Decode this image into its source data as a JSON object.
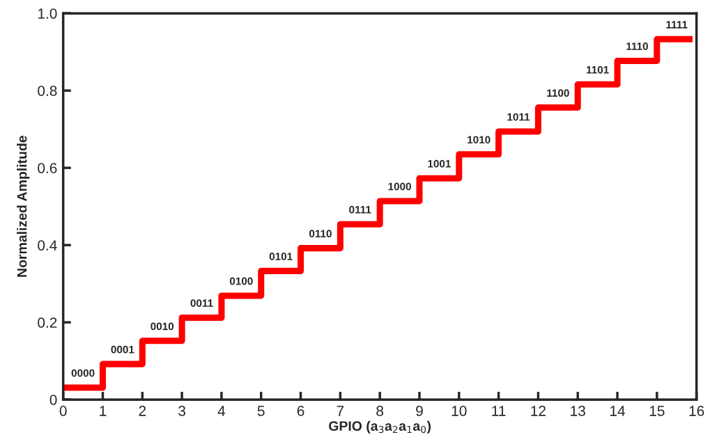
{
  "chart_data": {
    "type": "step",
    "xlabel": "GPIO (a$_{3}$a$_{2}$a$_{1}$a$_{0}$)",
    "ylabel": "Normalized Amplitude",
    "series": [
      {
        "color": "#ff0000",
        "x": [
          0,
          1,
          2,
          3,
          4,
          5,
          6,
          7,
          8,
          9,
          10,
          11,
          12,
          13,
          14,
          15,
          15.9
        ],
        "values": [
          0.031,
          0.092,
          0.152,
          0.212,
          0.269,
          0.333,
          0.392,
          0.454,
          0.514,
          0.573,
          0.635,
          0.694,
          0.756,
          0.816,
          0.877,
          0.933,
          0.933
        ]
      }
    ],
    "annotations": [
      {
        "text": "0000",
        "x": 0.5,
        "y": 0.031
      },
      {
        "text": "0001",
        "x": 1.5,
        "y": 0.092
      },
      {
        "text": "0010",
        "x": 2.5,
        "y": 0.152
      },
      {
        "text": "0011",
        "x": 3.5,
        "y": 0.212
      },
      {
        "text": "0100",
        "x": 4.5,
        "y": 0.269
      },
      {
        "text": "0101",
        "x": 5.5,
        "y": 0.333
      },
      {
        "text": "0110",
        "x": 6.5,
        "y": 0.392
      },
      {
        "text": "0111",
        "x": 7.5,
        "y": 0.454
      },
      {
        "text": "1000",
        "x": 8.5,
        "y": 0.514
      },
      {
        "text": "1001",
        "x": 9.5,
        "y": 0.573
      },
      {
        "text": "1010",
        "x": 10.5,
        "y": 0.635
      },
      {
        "text": "1011",
        "x": 11.5,
        "y": 0.694
      },
      {
        "text": "1100",
        "x": 12.5,
        "y": 0.756
      },
      {
        "text": "1101",
        "x": 13.5,
        "y": 0.816
      },
      {
        "text": "1110",
        "x": 14.5,
        "y": 0.877
      },
      {
        "text": "1111",
        "x": 15.5,
        "y": 0.933
      }
    ],
    "xlim": [
      0,
      16
    ],
    "xticks": [
      0,
      1,
      2,
      3,
      4,
      5,
      6,
      7,
      8,
      9,
      10,
      11,
      12,
      13,
      14,
      15,
      16
    ],
    "ylim": [
      0,
      1.0
    ],
    "yticks": [
      {
        "value": 0,
        "label": "0"
      },
      0.2,
      0.4,
      0.6,
      0.8,
      {
        "value": 1.0,
        "label": "1.0"
      }
    ],
    "grid": false,
    "legend": false
  }
}
